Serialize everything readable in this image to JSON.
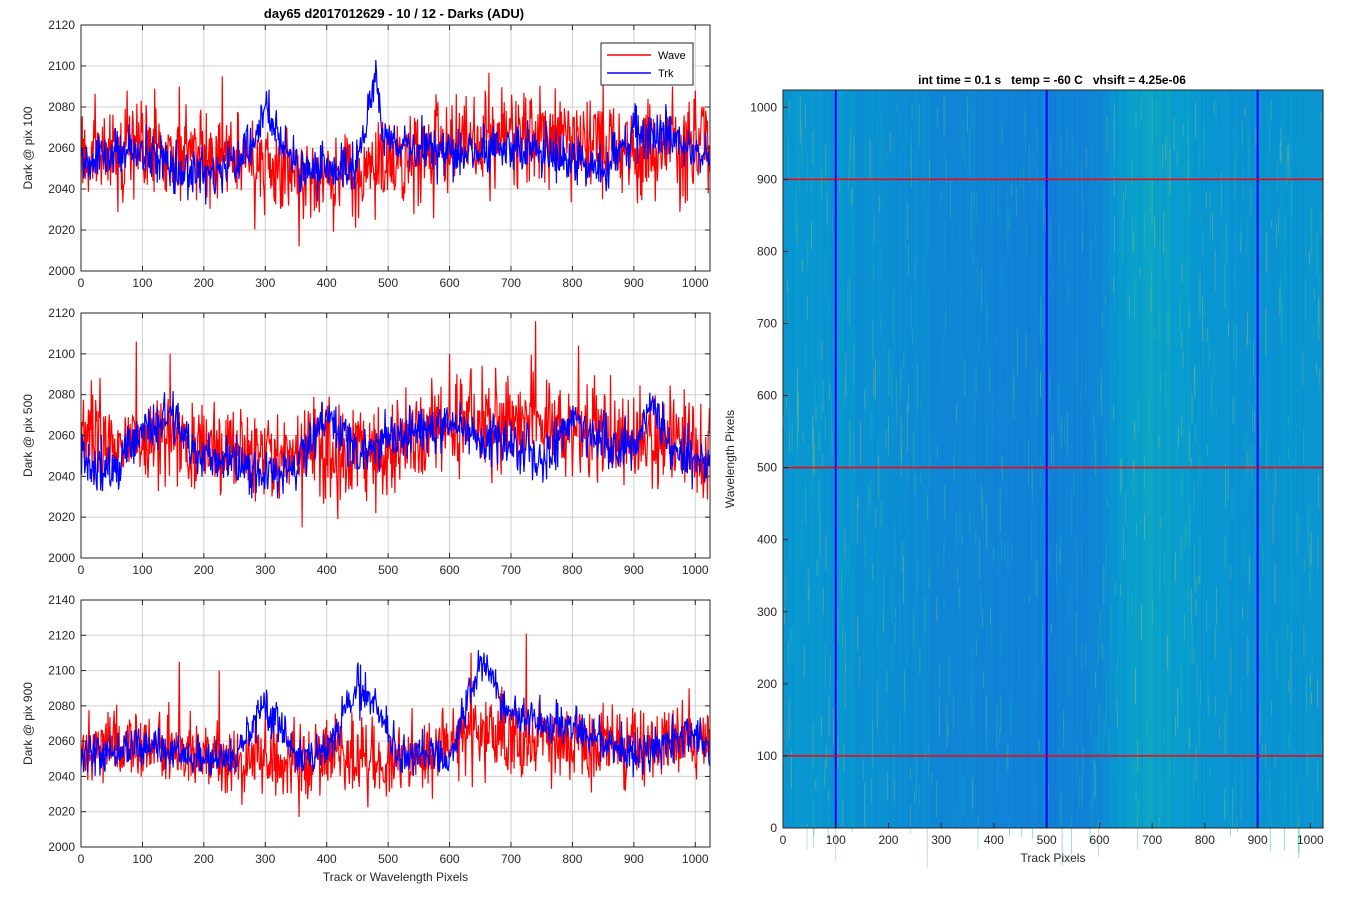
{
  "figure_title": "day65 d2017012629 - 10 / 12 - Darks (ADU)",
  "colors": {
    "wave": "#ff0000",
    "trk": "#0000ff",
    "grid": "#d0d0d0",
    "axis": "#262626"
  },
  "chart_data": [
    {
      "type": "line",
      "title": "day65 d2017012629 - 10 / 12 - Darks (ADU)",
      "xlabel": "",
      "ylabel": "Dark @ pix 100",
      "xlim": [
        0,
        1024
      ],
      "ylim": [
        2000,
        2120
      ],
      "xticks": [
        0,
        100,
        200,
        300,
        400,
        500,
        600,
        700,
        800,
        900,
        1000
      ],
      "yticks": [
        2000,
        2020,
        2040,
        2060,
        2080,
        2100,
        2120
      ],
      "grid": true,
      "legend": {
        "position": "top-right",
        "entries": [
          "Wave",
          "Trk"
        ]
      },
      "series": [
        {
          "name": "Wave",
          "color": "#ff0000",
          "n_points": 1024,
          "mean": 2055,
          "noise_sd": 12,
          "spikes": [
            [
              75,
              2088
            ],
            [
              160,
              2090
            ],
            [
              230,
              2095
            ],
            [
              355,
              2012
            ],
            [
              640,
              2085
            ],
            [
              850,
              2092
            ],
            [
              1000,
              2088
            ]
          ],
          "x": [
            0,
            100,
            200,
            300,
            400,
            500,
            600,
            700,
            800,
            900,
            1000
          ],
          "y": [
            2055,
            2060,
            2056,
            2052,
            2048,
            2050,
            2060,
            2066,
            2063,
            2060,
            2062
          ]
        },
        {
          "name": "Trk",
          "color": "#0000ff",
          "n_points": 1024,
          "mean": 2052,
          "noise_sd": 6,
          "x": [
            0,
            50,
            100,
            150,
            200,
            250,
            300,
            350,
            400,
            450,
            470,
            480,
            490,
            520,
            600,
            700,
            800,
            850,
            900,
            950,
            1000,
            1024
          ],
          "y": [
            2055,
            2055,
            2060,
            2050,
            2048,
            2050,
            2075,
            2052,
            2050,
            2050,
            2080,
            2100,
            2065,
            2058,
            2058,
            2060,
            2055,
            2050,
            2065,
            2068,
            2060,
            2055
          ]
        }
      ]
    },
    {
      "type": "line",
      "xlabel": "",
      "ylabel": "Dark @ pix 500",
      "xlim": [
        0,
        1024
      ],
      "ylim": [
        2000,
        2120
      ],
      "xticks": [
        0,
        100,
        200,
        300,
        400,
        500,
        600,
        700,
        800,
        900,
        1000
      ],
      "yticks": [
        2000,
        2020,
        2040,
        2060,
        2080,
        2100,
        2120
      ],
      "grid": true,
      "series": [
        {
          "name": "Wave",
          "color": "#ff0000",
          "n_points": 1024,
          "mean": 2055,
          "noise_sd": 12,
          "spikes": [
            [
              90,
              2106
            ],
            [
              145,
              2100
            ],
            [
              360,
              2015
            ],
            [
              480,
              2022
            ],
            [
              600,
              2100
            ],
            [
              740,
              2116
            ],
            [
              810,
              2104
            ]
          ],
          "x": [
            0,
            100,
            200,
            300,
            400,
            500,
            600,
            700,
            800,
            900,
            1000
          ],
          "y": [
            2058,
            2060,
            2053,
            2050,
            2050,
            2052,
            2068,
            2068,
            2062,
            2058,
            2055
          ]
        },
        {
          "name": "Trk",
          "color": "#0000ff",
          "n_points": 1024,
          "mean": 2050,
          "noise_sd": 6,
          "x": [
            0,
            50,
            100,
            150,
            200,
            250,
            300,
            350,
            400,
            450,
            500,
            550,
            600,
            650,
            700,
            750,
            800,
            850,
            900,
            930,
            960,
            1024
          ],
          "y": [
            2052,
            2042,
            2062,
            2068,
            2048,
            2048,
            2040,
            2045,
            2070,
            2050,
            2058,
            2062,
            2068,
            2058,
            2055,
            2048,
            2068,
            2058,
            2052,
            2078,
            2052,
            2045
          ]
        }
      ]
    },
    {
      "type": "line",
      "xlabel": "Track or Wavelength Pixels",
      "ylabel": "Dark @ pix 900",
      "xlim": [
        0,
        1024
      ],
      "ylim": [
        2000,
        2140
      ],
      "xticks": [
        0,
        100,
        200,
        300,
        400,
        500,
        600,
        700,
        800,
        900,
        1000
      ],
      "yticks": [
        2000,
        2020,
        2040,
        2060,
        2080,
        2100,
        2120,
        2140
      ],
      "grid": true,
      "series": [
        {
          "name": "Wave",
          "color": "#ff0000",
          "n_points": 1024,
          "mean": 2055,
          "noise_sd": 11,
          "spikes": [
            [
              160,
              2105
            ],
            [
              225,
              2100
            ],
            [
              355,
              2017
            ],
            [
              635,
              2110
            ],
            [
              725,
              2121
            ],
            [
              990,
              2090
            ]
          ],
          "x": [
            0,
            100,
            200,
            300,
            400,
            500,
            600,
            700,
            800,
            900,
            1000
          ],
          "y": [
            2055,
            2060,
            2052,
            2050,
            2048,
            2048,
            2058,
            2062,
            2060,
            2058,
            2058
          ]
        },
        {
          "name": "Trk",
          "color": "#0000ff",
          "n_points": 1024,
          "mean": 2050,
          "noise_sd": 6,
          "x": [
            0,
            100,
            200,
            250,
            300,
            350,
            400,
            450,
            480,
            520,
            600,
            650,
            700,
            800,
            900,
            1000,
            1024
          ],
          "y": [
            2052,
            2058,
            2050,
            2050,
            2080,
            2052,
            2055,
            2090,
            2080,
            2052,
            2050,
            2105,
            2075,
            2068,
            2052,
            2065,
            2055
          ]
        }
      ]
    },
    {
      "type": "heatmap",
      "title": "int time = 0.1 s   temp = -60 C   vhsift = 4.25e-06",
      "xlabel": "Track Pixels",
      "ylabel": "Wavelength Pixels",
      "xlim": [
        0,
        1024
      ],
      "ylim": [
        0,
        1024
      ],
      "xticks": [
        0,
        100,
        200,
        300,
        400,
        500,
        600,
        700,
        800,
        900,
        1000
      ],
      "yticks": [
        0,
        100,
        200,
        300,
        400,
        500,
        600,
        700,
        800,
        900,
        1000
      ],
      "colormap": "parula",
      "column_level_profile": {
        "x": [
          0,
          100,
          200,
          300,
          400,
          500,
          600,
          650,
          700,
          750,
          800,
          900,
          1000,
          1024
        ],
        "level": [
          0.42,
          0.42,
          0.38,
          0.35,
          0.33,
          0.32,
          0.34,
          0.45,
          0.48,
          0.46,
          0.42,
          0.4,
          0.42,
          0.42
        ]
      },
      "vertical_markers": {
        "color": "#0000ff",
        "x": [
          100,
          500,
          900
        ]
      },
      "horizontal_markers": {
        "color": "#ff0000",
        "y": [
          100,
          500,
          900
        ]
      }
    }
  ]
}
